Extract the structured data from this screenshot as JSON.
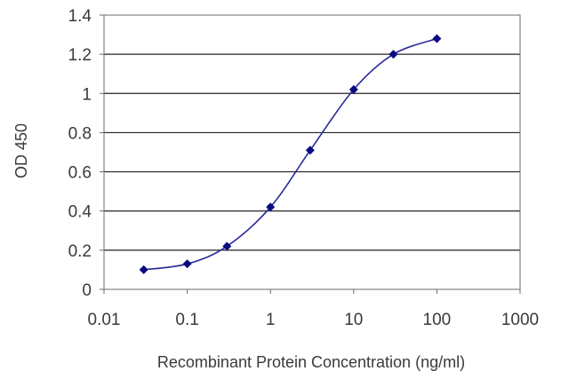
{
  "chart_data": {
    "type": "line",
    "title": "",
    "xlabel": "Recombinant Protein Concentration (ng/ml)",
    "ylabel": "OD 450",
    "x_scale": "log",
    "xlim": [
      0.01,
      1000
    ],
    "ylim": [
      0,
      1.4
    ],
    "x_ticks": [
      "0.01",
      "0.1",
      "1",
      "10",
      "100",
      "1000"
    ],
    "y_ticks": [
      "0",
      "0.2",
      "0.4",
      "0.6",
      "0.8",
      "1",
      "1.2",
      "1.4"
    ],
    "grid": "horizontal",
    "series": [
      {
        "x": [
          0.03,
          0.1,
          0.3,
          1,
          3,
          10,
          30,
          100
        ],
        "y": [
          0.1,
          0.13,
          0.22,
          0.42,
          0.71,
          1.02,
          1.2,
          1.28
        ]
      }
    ],
    "colors": {
      "line": "#2a2a9a",
      "marker": "#0a0a80",
      "grid": "#222222",
      "plot_background": "#ffffff"
    },
    "marker": "diamond"
  }
}
